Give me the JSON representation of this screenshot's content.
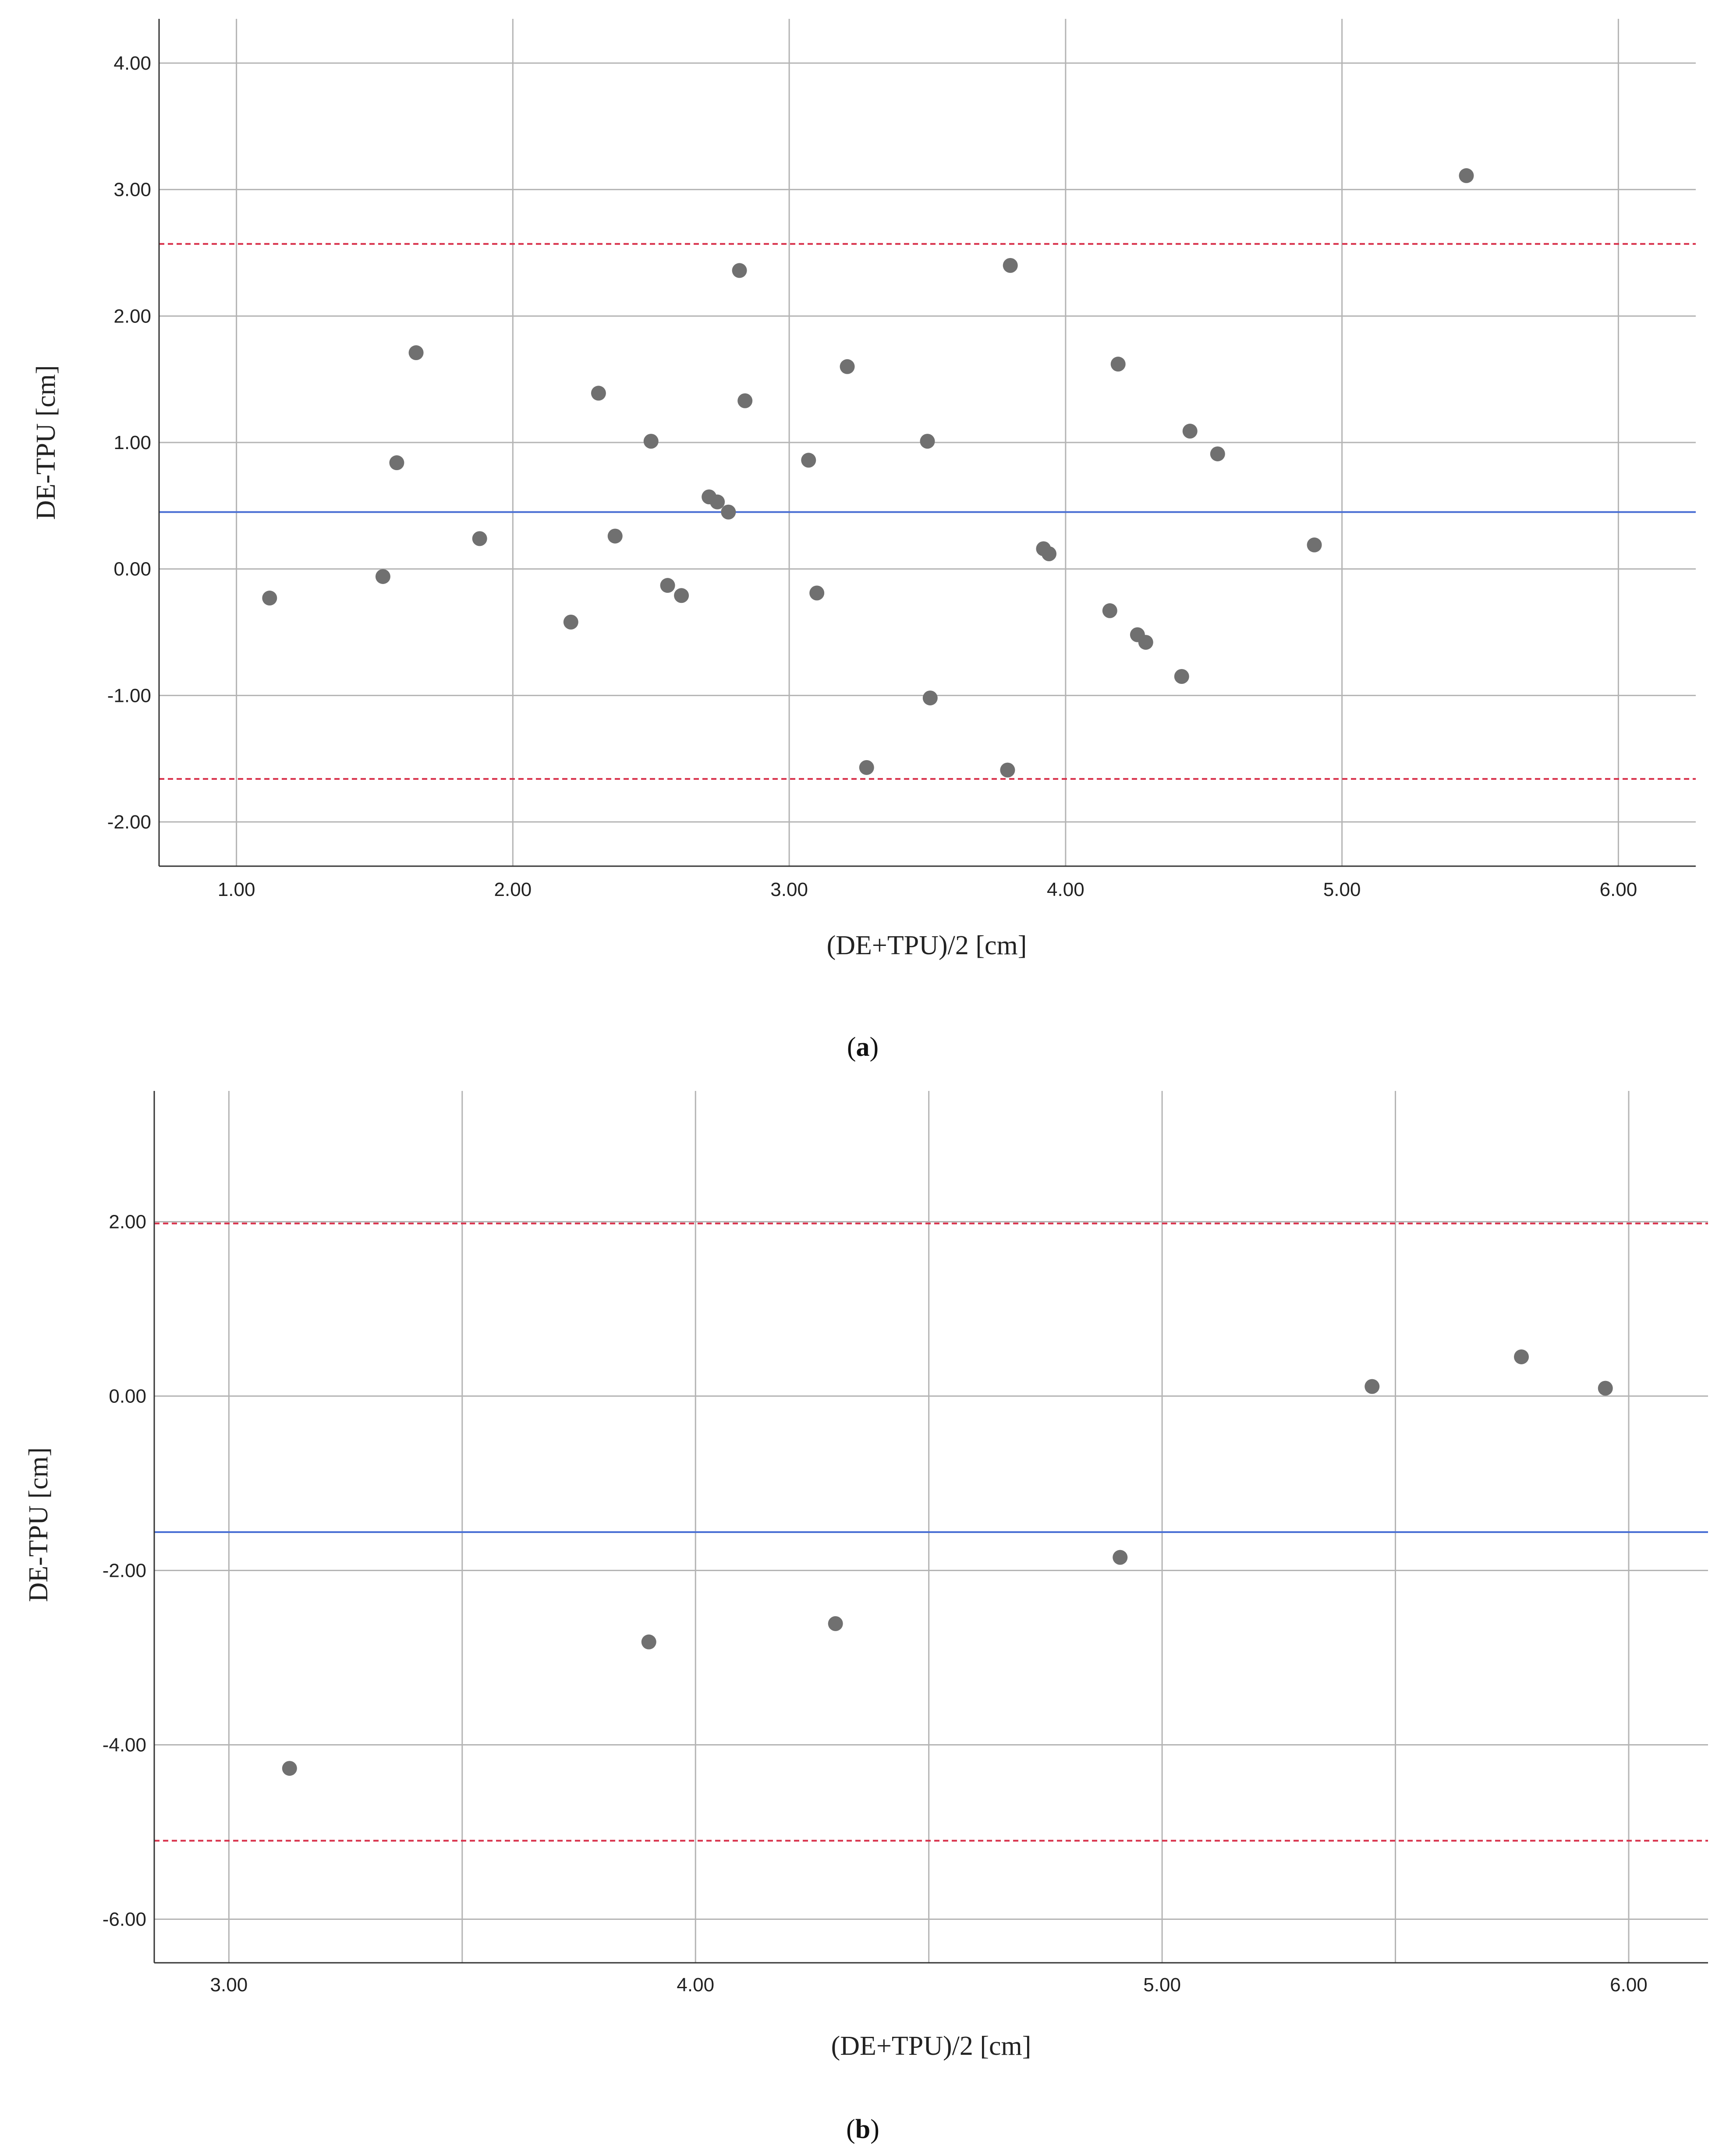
{
  "chart_data": [
    {
      "type": "scatter",
      "panel": "a",
      "caption_letter": "a",
      "xlabel": "(DE+TPU)/2 [cm]",
      "ylabel": "DE-TPU [cm]",
      "xlim": [
        0.72,
        6.28
      ],
      "ylim": [
        -2.35,
        4.35
      ],
      "xticks": [
        1.0,
        2.0,
        3.0,
        4.0,
        5.0,
        6.0
      ],
      "xtick_labels": [
        "1.00",
        "2.00",
        "3.00",
        "4.00",
        "5.00",
        "6.00"
      ],
      "yticks": [
        -2.0,
        -1.0,
        0.0,
        1.0,
        2.0,
        3.0,
        4.0
      ],
      "ytick_labels": [
        "-2.00",
        "-1.00",
        "0.00",
        "1.00",
        "2.00",
        "3.00",
        "4.00"
      ],
      "mean_line": 0.45,
      "upper_loa": 2.57,
      "lower_loa": -1.66,
      "line_colors": {
        "mean": "#4a6fd4",
        "loa": "#d8304a",
        "grid": "#b4b4b4",
        "point": "#707070"
      },
      "points": [
        {
          "x": 1.12,
          "y": -0.23
        },
        {
          "x": 1.53,
          "y": -0.06
        },
        {
          "x": 1.58,
          "y": 0.84
        },
        {
          "x": 1.65,
          "y": 1.71
        },
        {
          "x": 1.88,
          "y": 0.24
        },
        {
          "x": 2.21,
          "y": -0.42
        },
        {
          "x": 2.31,
          "y": 1.39
        },
        {
          "x": 2.37,
          "y": 0.26
        },
        {
          "x": 2.5,
          "y": 1.01
        },
        {
          "x": 2.56,
          "y": -0.13
        },
        {
          "x": 2.61,
          "y": -0.21
        },
        {
          "x": 2.71,
          "y": 0.57
        },
        {
          "x": 2.74,
          "y": 0.53
        },
        {
          "x": 2.78,
          "y": 0.45
        },
        {
          "x": 2.82,
          "y": 2.36
        },
        {
          "x": 2.84,
          "y": 1.33
        },
        {
          "x": 3.07,
          "y": 0.86
        },
        {
          "x": 3.1,
          "y": -0.19
        },
        {
          "x": 3.21,
          "y": 1.6
        },
        {
          "x": 3.28,
          "y": -1.57
        },
        {
          "x": 3.5,
          "y": 1.01
        },
        {
          "x": 3.51,
          "y": -1.02
        },
        {
          "x": 3.79,
          "y": -1.59
        },
        {
          "x": 3.8,
          "y": 2.4
        },
        {
          "x": 3.92,
          "y": 0.16
        },
        {
          "x": 3.94,
          "y": 0.12
        },
        {
          "x": 4.16,
          "y": -0.33
        },
        {
          "x": 4.19,
          "y": 1.62
        },
        {
          "x": 4.26,
          "y": -0.52
        },
        {
          "x": 4.29,
          "y": -0.58
        },
        {
          "x": 4.42,
          "y": -0.85
        },
        {
          "x": 4.45,
          "y": 1.09
        },
        {
          "x": 4.55,
          "y": 0.91
        },
        {
          "x": 4.9,
          "y": 0.19
        },
        {
          "x": 5.45,
          "y": 3.11
        }
      ]
    },
    {
      "type": "scatter",
      "panel": "b",
      "caption_letter": "b",
      "xlabel": "(DE+TPU)/2 [cm]",
      "ylabel": "DE-TPU [cm]",
      "xlim": [
        2.84,
        6.17
      ],
      "ylim": [
        -6.5,
        3.5
      ],
      "xticks": [
        3.0,
        4.0,
        5.0,
        6.0
      ],
      "xtick_labels": [
        "3.00",
        "4.00",
        "5.00",
        "6.00"
      ],
      "minor_xgrid": [
        3.5,
        4.5,
        5.5
      ],
      "yticks": [
        -6.0,
        -4.0,
        -2.0,
        0.0,
        2.0
      ],
      "ytick_labels": [
        "-6.00",
        "-4.00",
        "-2.00",
        "0.00",
        "2.00"
      ],
      "mean_line": -1.56,
      "upper_loa": 1.98,
      "lower_loa": -5.1,
      "line_colors": {
        "mean": "#4a6fd4",
        "loa": "#d8304a",
        "grid": "#b4b4b4",
        "point": "#707070"
      },
      "points": [
        {
          "x": 3.13,
          "y": -4.27
        },
        {
          "x": 3.9,
          "y": -2.82
        },
        {
          "x": 4.3,
          "y": -2.61
        },
        {
          "x": 4.91,
          "y": -1.85
        },
        {
          "x": 5.45,
          "y": 0.11
        },
        {
          "x": 5.77,
          "y": 0.45
        },
        {
          "x": 5.95,
          "y": 0.09
        }
      ]
    }
  ]
}
